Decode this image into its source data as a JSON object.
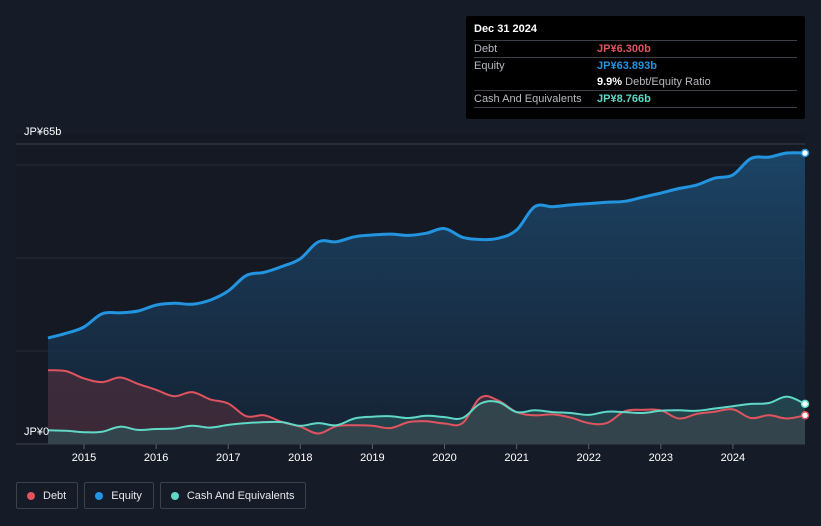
{
  "tooltip": {
    "date": "Dec 31 2024",
    "debt_label": "Debt",
    "debt_value": "JP¥6.300b",
    "equity_label": "Equity",
    "equity_value": "JP¥63.893b",
    "ratio_value": "9.9%",
    "ratio_label": "Debt/Equity Ratio",
    "cash_label": "Cash And Equivalents",
    "cash_value": "JP¥8.766b"
  },
  "legend": {
    "debt": "Debt",
    "equity": "Equity",
    "cash": "Cash And Equivalents"
  },
  "colors": {
    "debt": "#e0545f",
    "equity": "#2394df",
    "cash": "#5fd8c6"
  },
  "chart_data": {
    "type": "area",
    "title": "",
    "ylabel_top": "JP¥65b",
    "ylabel_bottom": "JP¥0",
    "ylim": [
      0,
      65
    ],
    "xlim": [
      2014.5,
      2025.0
    ],
    "x_ticks": [
      2015,
      2016,
      2017,
      2018,
      2019,
      2020,
      2021,
      2022,
      2023,
      2024
    ],
    "series": [
      {
        "name": "Equity",
        "x": [
          2014.5,
          2014.75,
          2015.0,
          2015.25,
          2015.5,
          2015.75,
          2016.0,
          2016.25,
          2016.5,
          2016.75,
          2017.0,
          2017.25,
          2017.5,
          2017.75,
          2018.0,
          2018.25,
          2018.5,
          2018.75,
          2019.0,
          2019.25,
          2019.5,
          2019.75,
          2020.0,
          2020.25,
          2020.5,
          2020.75,
          2021.0,
          2021.25,
          2021.5,
          2021.75,
          2022.0,
          2022.25,
          2022.5,
          2022.75,
          2023.0,
          2023.25,
          2023.5,
          2023.75,
          2024.0,
          2024.25,
          2024.5,
          2024.75,
          2025.0
        ],
        "values": [
          23.3,
          24.3,
          25.7,
          28.6,
          28.8,
          29.2,
          30.5,
          30.9,
          30.7,
          31.6,
          33.6,
          37.0,
          37.7,
          39.0,
          40.7,
          44.4,
          44.4,
          45.5,
          45.9,
          46.1,
          45.8,
          46.3,
          47.3,
          45.4,
          44.9,
          45.2,
          47.0,
          52.1,
          52.1,
          52.5,
          52.8,
          53.1,
          53.3,
          54.2,
          55.1,
          56.1,
          56.9,
          58.4,
          59.1,
          62.7,
          63.0,
          63.9,
          63.9
        ]
      },
      {
        "name": "Debt",
        "x": [
          2014.5,
          2014.75,
          2015.0,
          2015.25,
          2015.5,
          2015.75,
          2016.0,
          2016.25,
          2016.5,
          2016.75,
          2017.0,
          2017.25,
          2017.5,
          2017.75,
          2018.0,
          2018.25,
          2018.5,
          2018.75,
          2019.0,
          2019.25,
          2019.5,
          2019.75,
          2020.0,
          2020.25,
          2020.5,
          2020.75,
          2021.0,
          2021.25,
          2021.5,
          2021.75,
          2022.0,
          2022.25,
          2022.5,
          2022.75,
          2023.0,
          2023.25,
          2023.5,
          2023.75,
          2024.0,
          2024.25,
          2024.5,
          2024.75,
          2025.0
        ],
        "values": [
          16.2,
          16.0,
          14.4,
          13.6,
          14.6,
          13.2,
          11.9,
          10.5,
          11.4,
          9.8,
          8.9,
          6.1,
          6.3,
          4.8,
          3.8,
          2.3,
          3.9,
          4.1,
          4.0,
          3.5,
          4.8,
          5.0,
          4.5,
          4.6,
          10.2,
          9.5,
          7.0,
          6.3,
          6.5,
          5.8,
          4.6,
          4.6,
          7.2,
          7.5,
          7.4,
          5.6,
          6.6,
          7.1,
          7.6,
          5.7,
          6.3,
          5.6,
          6.3
        ]
      },
      {
        "name": "Cash And Equivalents",
        "x": [
          2014.5,
          2014.75,
          2015.0,
          2015.25,
          2015.5,
          2015.75,
          2016.0,
          2016.25,
          2016.5,
          2016.75,
          2017.0,
          2017.25,
          2017.5,
          2017.75,
          2018.0,
          2018.25,
          2018.5,
          2018.75,
          2019.0,
          2019.25,
          2019.5,
          2019.75,
          2020.0,
          2020.25,
          2020.5,
          2020.75,
          2021.0,
          2021.25,
          2021.5,
          2021.75,
          2022.0,
          2022.25,
          2022.5,
          2022.75,
          2023.0,
          2023.25,
          2023.5,
          2023.75,
          2024.0,
          2024.25,
          2024.5,
          2024.75,
          2025.0
        ],
        "values": [
          3.0,
          2.9,
          2.6,
          2.7,
          3.8,
          3.1,
          3.3,
          3.4,
          4.0,
          3.6,
          4.2,
          4.6,
          4.8,
          4.8,
          4.0,
          4.6,
          4.1,
          5.6,
          6.0,
          6.1,
          5.7,
          6.2,
          5.9,
          5.7,
          8.9,
          9.2,
          7.0,
          7.4,
          7.0,
          6.8,
          6.4,
          7.1,
          7.0,
          6.8,
          7.3,
          7.4,
          7.3,
          7.8,
          8.3,
          8.8,
          9.0,
          10.4,
          8.8
        ]
      }
    ]
  }
}
